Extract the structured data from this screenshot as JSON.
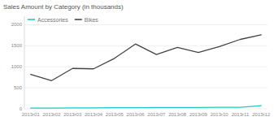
{
  "chart_data": {
    "type": "line",
    "title": "Sales Amount by Category (in thousands)",
    "categories": [
      "2013r01",
      "2013r02",
      "2013r03",
      "2013r04",
      "2013r05",
      "2013r06",
      "2013r07",
      "2013r08",
      "2013r09",
      "2013r10",
      "2013r11",
      "2013r12"
    ],
    "series": [
      {
        "name": "Accessories",
        "color": "#1ec8c0",
        "values": [
          18,
          18,
          20,
          22,
          25,
          28,
          30,
          32,
          33,
          35,
          38,
          75
        ]
      },
      {
        "name": "Bikes",
        "color": "#444444",
        "values": [
          820,
          670,
          960,
          950,
          1200,
          1540,
          1290,
          1460,
          1340,
          1480,
          1650,
          1760
        ]
      }
    ],
    "ylim": [
      0,
      2200
    ],
    "yticks": [
      0,
      500,
      1000,
      1500,
      2000
    ],
    "grid": true,
    "legend": "upper left"
  }
}
